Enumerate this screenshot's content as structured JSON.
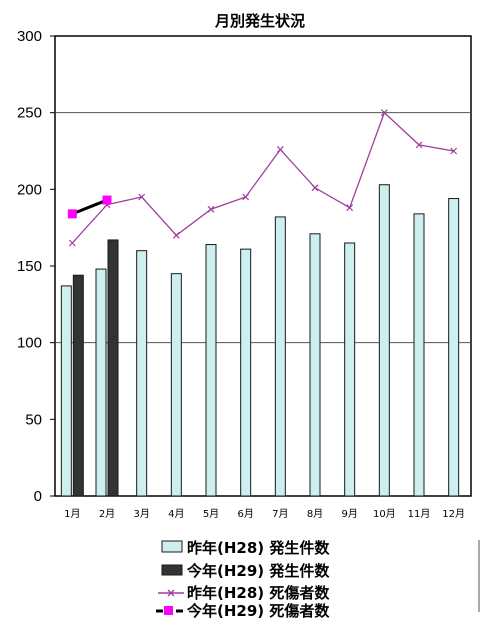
{
  "chart_data": {
    "type": "bar",
    "title": "月別発生状況",
    "categories": [
      "1月",
      "2月",
      "3月",
      "4月",
      "5月",
      "6月",
      "7月",
      "8月",
      "9月",
      "10月",
      "11月",
      "12月"
    ],
    "ylim": [
      0,
      300
    ],
    "yticks": [
      0,
      50,
      100,
      150,
      200,
      250,
      300
    ],
    "grid": "horizontal at 100 and 250",
    "legend_position": "bottom",
    "series": [
      {
        "name": "昨年(H28) 発生件数",
        "kind": "bar",
        "color": "#cdeff0",
        "stroke": "#1a1a1a",
        "values": [
          137,
          148,
          160,
          145,
          164,
          161,
          182,
          171,
          165,
          203,
          184,
          194
        ]
      },
      {
        "name": "今年(H29) 発生件数",
        "kind": "bar",
        "color": "#333333",
        "stroke": "#1a1a1a",
        "values": [
          144,
          167,
          null,
          null,
          null,
          null,
          null,
          null,
          null,
          null,
          null,
          null
        ]
      },
      {
        "name": "昨年(H28) 死傷者数",
        "kind": "line",
        "color": "#a03c9c",
        "values": [
          165,
          190,
          195,
          170,
          187,
          195,
          226,
          201,
          188,
          250,
          229,
          225
        ]
      },
      {
        "name": "今年(H29) 死傷者数",
        "kind": "line",
        "color": "#000000",
        "marker_color": "#ff00ff",
        "values": [
          184,
          193,
          null,
          null,
          null,
          null,
          null,
          null,
          null,
          null,
          null,
          null
        ]
      }
    ]
  }
}
